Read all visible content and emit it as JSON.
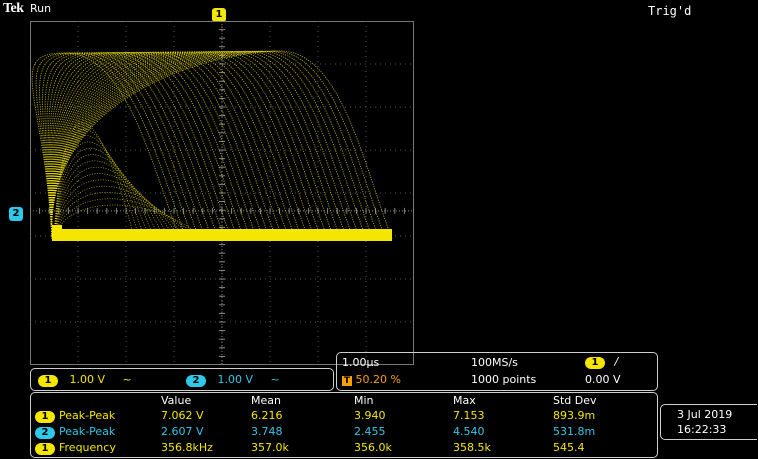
{
  "header": {
    "brand": "Tek",
    "run_state": "Run",
    "trigger_status": "Trig'd"
  },
  "markers": {
    "ch1_top": "1",
    "ch2_left": "2"
  },
  "channels": [
    {
      "num": "1",
      "scale": "1.00 V",
      "coupling_icon": "~",
      "color": "#f5e600"
    },
    {
      "num": "2",
      "scale": "1.00 V",
      "coupling_icon": "~",
      "color": "#30c8e8"
    }
  ],
  "timebase": {
    "time_per_div": "1.00µs",
    "trigger_pos_marker": "T",
    "trigger_pos": "50.20 %",
    "sample_rate": "100MS/s",
    "record_length": "1000 points",
    "trigger_source": "1",
    "trigger_slope_icon": "/",
    "trigger_level": "0.00 V"
  },
  "measurements": {
    "headers": [
      "Value",
      "Mean",
      "Min",
      "Max",
      "Std Dev"
    ],
    "rows": [
      {
        "ch": "1",
        "name": "Peak-Peak",
        "value": "7.062 V",
        "mean": "6.216",
        "min": "3.940",
        "max": "7.153",
        "std": "893.9m",
        "color": "#f5e600"
      },
      {
        "ch": "2",
        "name": "Peak-Peak",
        "value": "2.607 V",
        "mean": "3.748",
        "min": "2.455",
        "max": "4.540",
        "std": "531.8m",
        "color": "#30c8e8"
      },
      {
        "ch": "1",
        "name": "Frequency",
        "value": "356.8kHz",
        "mean": "357.0k",
        "min": "356.0k",
        "max": "358.5k",
        "std": "545.4",
        "color": "#f5e600"
      }
    ]
  },
  "datetime": {
    "date": "3 Jul  2019",
    "time": "16:22:33"
  },
  "colors": {
    "ch1": "#f5e600",
    "ch2": "#30c8e8",
    "trigger": "#f5a000",
    "grid": "#555555"
  }
}
